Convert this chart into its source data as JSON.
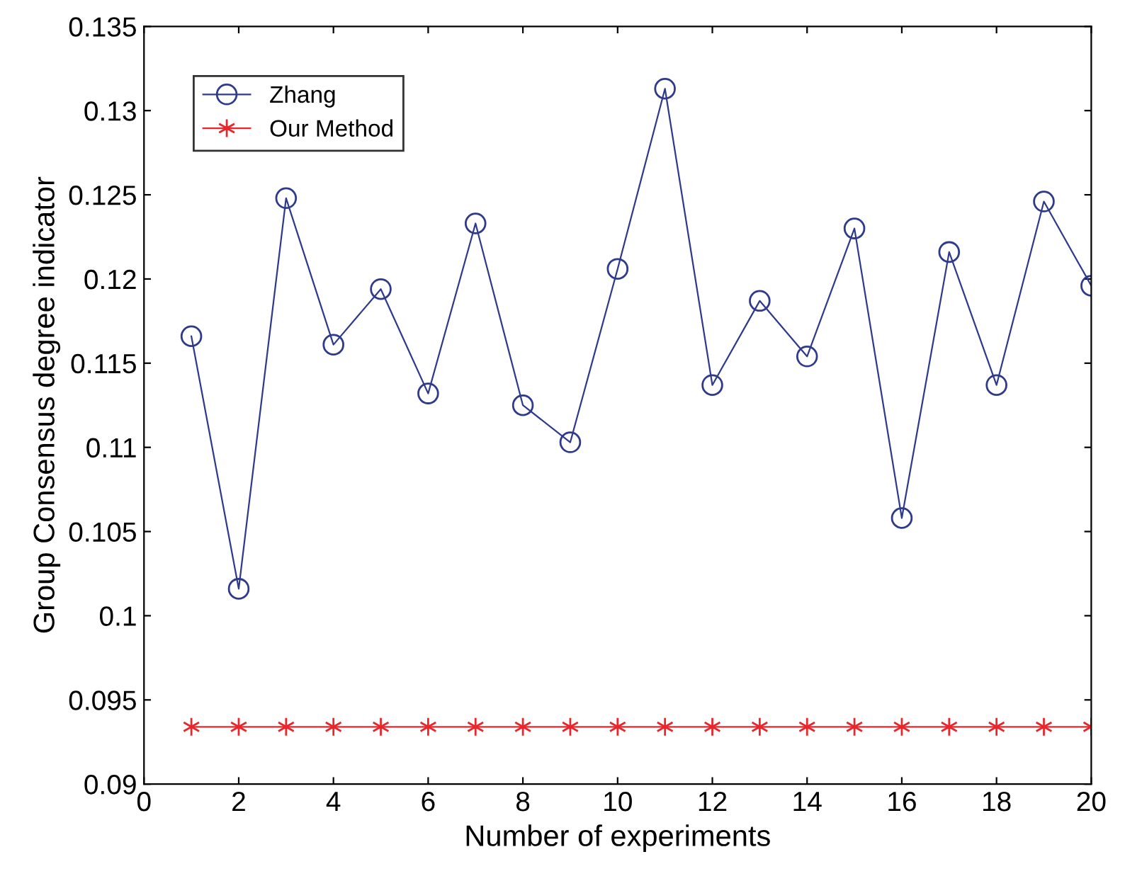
{
  "chart_data": {
    "type": "line",
    "xlabel": "Number of experiments",
    "ylabel": "Group Consensus degree indicator",
    "x": [
      1,
      2,
      3,
      4,
      5,
      6,
      7,
      8,
      9,
      10,
      11,
      12,
      13,
      14,
      15,
      16,
      17,
      18,
      19,
      20
    ],
    "series": [
      {
        "name": "Zhang",
        "color": "#2e3a8c",
        "marker": "circle",
        "values": [
          0.1166,
          0.1016,
          0.1248,
          0.1161,
          0.1194,
          0.1132,
          0.1233,
          0.1125,
          0.1103,
          0.1206,
          0.1313,
          0.1137,
          0.1187,
          0.1154,
          0.123,
          0.1058,
          0.1216,
          0.1137,
          0.1246,
          0.1196
        ]
      },
      {
        "name": "Our Method",
        "color": "#e8262b",
        "marker": "cross",
        "values": [
          0.0934,
          0.0934,
          0.0934,
          0.0934,
          0.0934,
          0.0934,
          0.0934,
          0.0934,
          0.0934,
          0.0934,
          0.0934,
          0.0934,
          0.0934,
          0.0934,
          0.0934,
          0.0934,
          0.0934,
          0.0934,
          0.0934,
          0.0934
        ]
      }
    ],
    "xlim": [
      0,
      20
    ],
    "xticks": [
      0,
      2,
      4,
      6,
      8,
      10,
      12,
      14,
      16,
      18,
      20
    ],
    "ylim": [
      0.09,
      0.135
    ],
    "yticks": [
      0.09,
      0.095,
      0.1,
      0.105,
      0.11,
      0.115,
      0.12,
      0.125,
      0.13,
      0.135
    ],
    "legend": "top left",
    "grid": false,
    "line_style": "solid"
  }
}
